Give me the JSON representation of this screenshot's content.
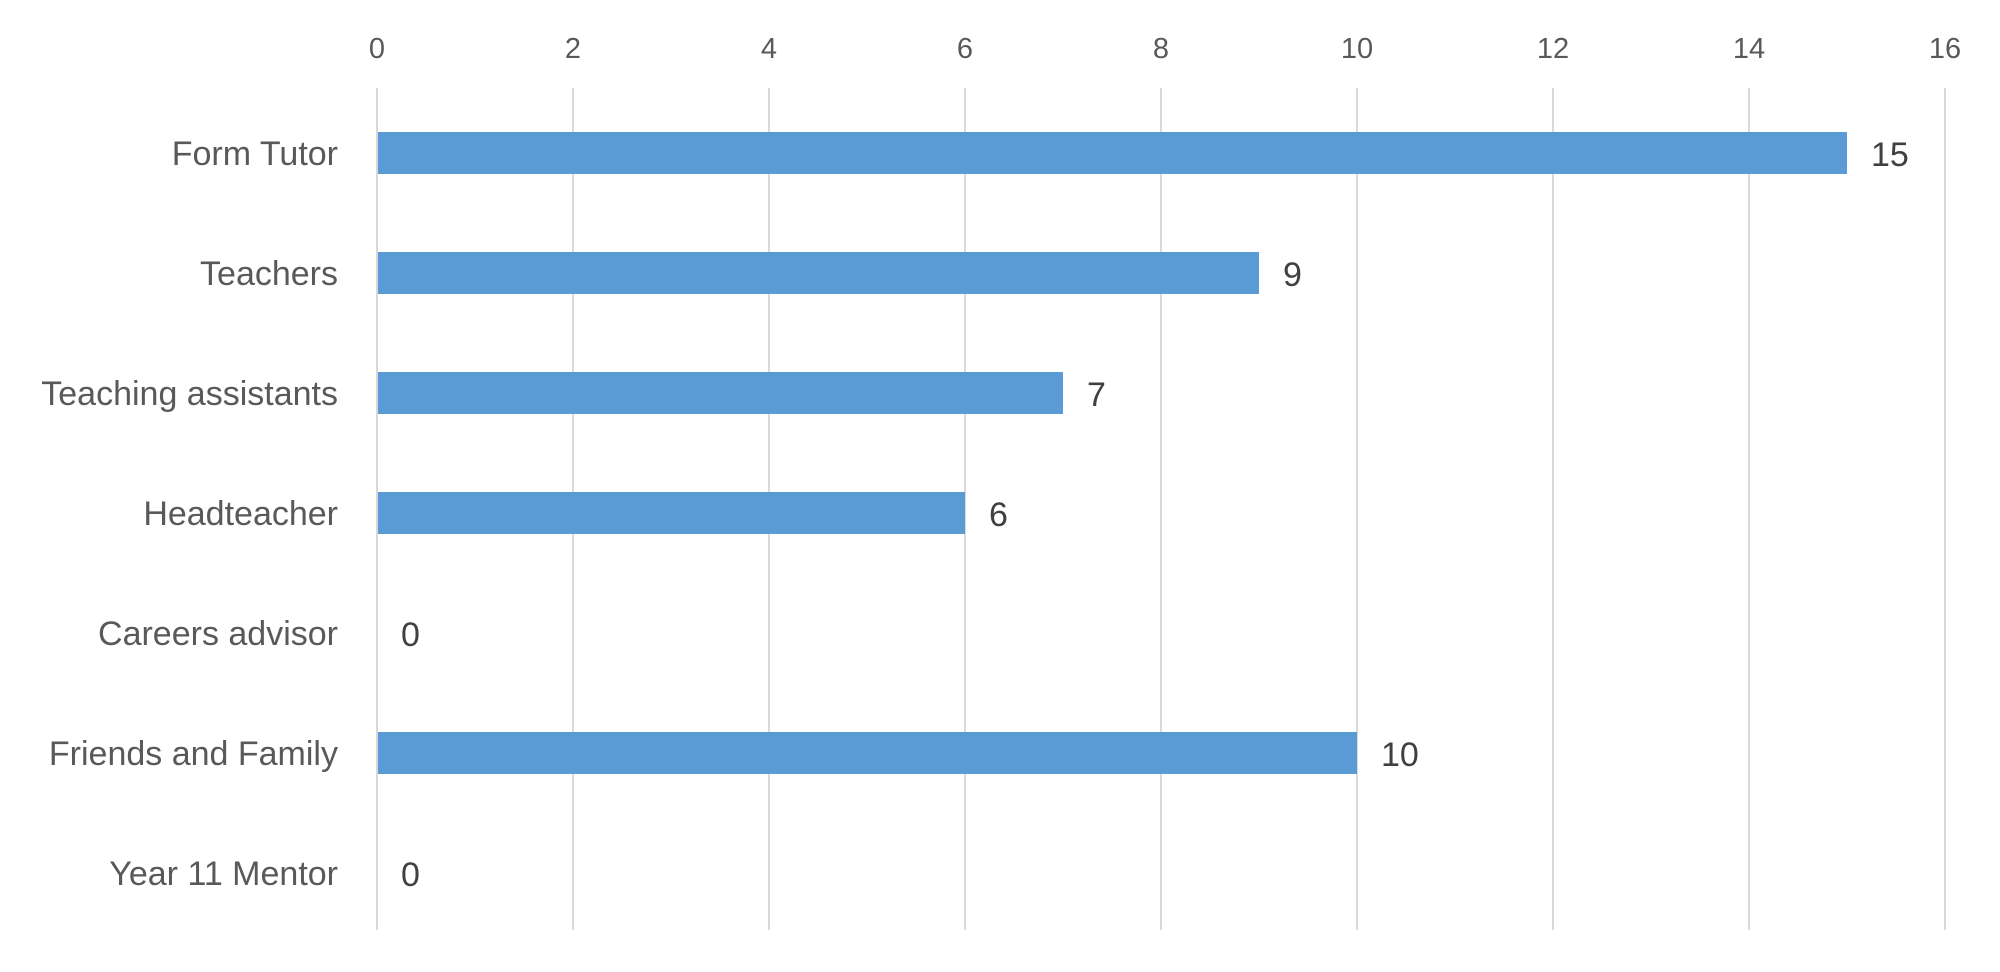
{
  "chart_data": {
    "type": "bar",
    "orientation": "horizontal",
    "categories": [
      "Form Tutor",
      "Teachers",
      "Teaching assistants",
      "Headteacher",
      "Careers advisor",
      "Friends and Family",
      "Year 11 Mentor"
    ],
    "values": [
      15,
      9,
      7,
      6,
      0,
      10,
      0
    ],
    "x_ticks": [
      0,
      2,
      4,
      6,
      8,
      10,
      12,
      14,
      16
    ],
    "xlim": [
      0,
      16
    ],
    "x_axis_position": "top",
    "title": "",
    "xlabel": "",
    "ylabel": "",
    "grid": true,
    "data_labels": true,
    "legend": "none",
    "bar_color": "#5b9bd5",
    "gridline_color": "#d9d9d9",
    "label_color": "#595959",
    "data_label_color": "#404040"
  }
}
